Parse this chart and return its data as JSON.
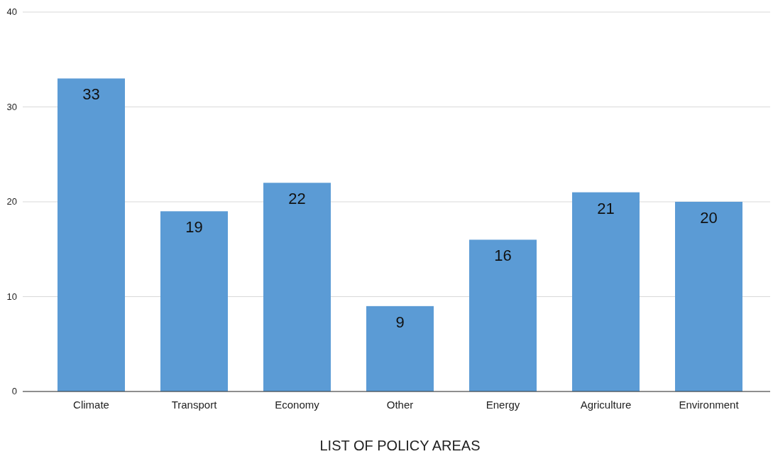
{
  "chart_data": {
    "type": "bar",
    "xlabel": "LIST OF POLICY AREAS",
    "categories": [
      "Climate",
      "Transport",
      "Economy",
      "Other",
      "Energy",
      "Agriculture",
      "Environment"
    ],
    "values": [
      33,
      19,
      22,
      9,
      16,
      21,
      20
    ],
    "color": "#5b9bd5",
    "ylim": [
      0,
      40
    ],
    "yticks": [
      0,
      10,
      20,
      30,
      40
    ],
    "grid": "y",
    "data_labels": true
  }
}
